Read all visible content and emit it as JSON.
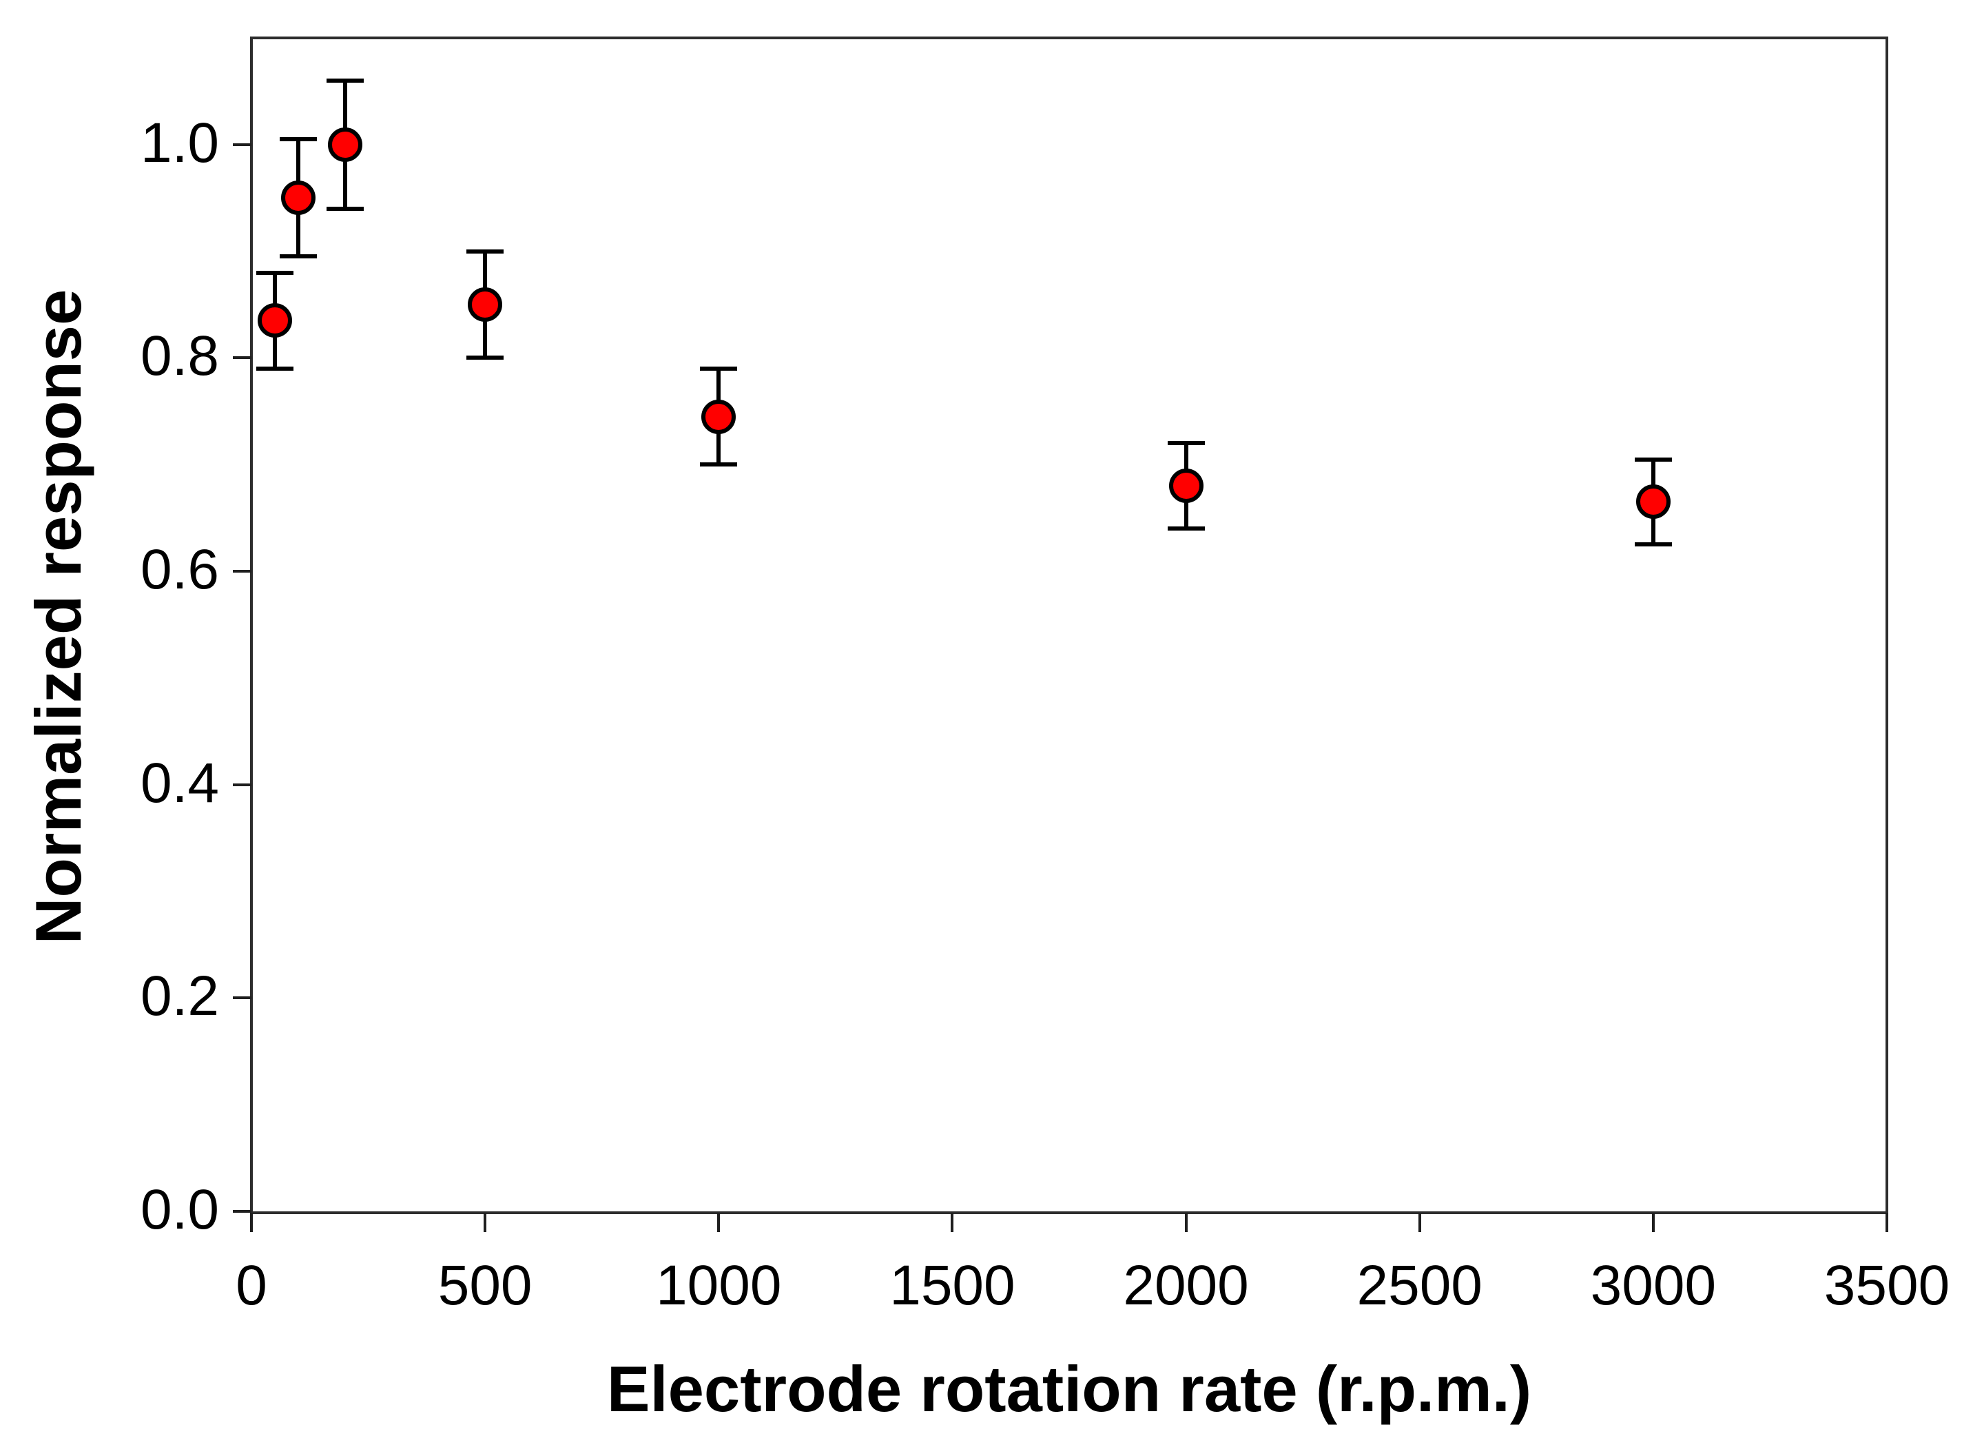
{
  "figure": {
    "background": "#ffffff"
  },
  "chart_data": {
    "type": "scatter",
    "title": "",
    "xlabel": "Electrode rotation rate (r.p.m.)",
    "ylabel": "Normalized response",
    "xlim": [
      0,
      3500
    ],
    "ylim": [
      0.0,
      1.1
    ],
    "grid": false,
    "legend": "none",
    "frame": "full-box",
    "tick_direction": "out",
    "x_ticks": [
      {
        "value": 0,
        "label": "0"
      },
      {
        "value": 500,
        "label": "500"
      },
      {
        "value": 1000,
        "label": "1000"
      },
      {
        "value": 1500,
        "label": "1500"
      },
      {
        "value": 2000,
        "label": "2000"
      },
      {
        "value": 2500,
        "label": "2500"
      },
      {
        "value": 3000,
        "label": "3000"
      },
      {
        "value": 3500,
        "label": "3500"
      }
    ],
    "y_ticks": [
      {
        "value": 0.0,
        "label": "0.0"
      },
      {
        "value": 0.2,
        "label": "0.2"
      },
      {
        "value": 0.4,
        "label": "0.4"
      },
      {
        "value": 0.6,
        "label": "0.6"
      },
      {
        "value": 0.8,
        "label": "0.8"
      },
      {
        "value": 1.0,
        "label": "1.0"
      }
    ],
    "series": [
      {
        "name": "normalized response",
        "marker_shape": "circle",
        "marker_fill": "#ff0000",
        "marker_edge": "#000000",
        "error_bar_color": "#000000",
        "points": [
          {
            "x": 50,
            "y": 0.835,
            "y_err": 0.045
          },
          {
            "x": 100,
            "y": 0.95,
            "y_err": 0.055
          },
          {
            "x": 200,
            "y": 1.0,
            "y_err": 0.06
          },
          {
            "x": 500,
            "y": 0.85,
            "y_err": 0.05
          },
          {
            "x": 1000,
            "y": 0.745,
            "y_err": 0.045
          },
          {
            "x": 2000,
            "y": 0.68,
            "y_err": 0.04
          },
          {
            "x": 3000,
            "y": 0.665,
            "y_err": 0.04
          }
        ]
      }
    ],
    "axis_color": "#2d2d2d",
    "text_color": "#000000"
  }
}
